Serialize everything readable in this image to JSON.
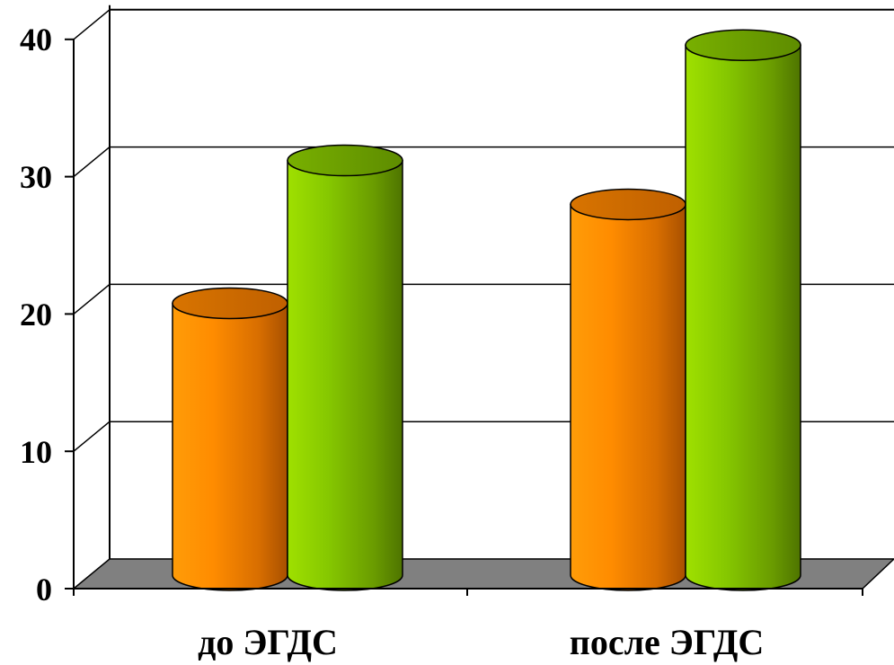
{
  "chart_data": {
    "type": "bar",
    "style": "3d-cylinder",
    "categories": [
      "до ЭГДС",
      "после ЭГДС"
    ],
    "series": [
      {
        "values": [
          19.8,
          27
        ],
        "color": "#ff9a00"
      },
      {
        "values": [
          30.2,
          38.6
        ],
        "color": "#8ccf00"
      }
    ],
    "y_ticks": [
      "0",
      "10",
      "20",
      "30",
      "40"
    ],
    "ylim": [
      0,
      40
    ],
    "grid": true,
    "legend": "none",
    "floor_color": "#808080",
    "title": "",
    "xlabel": "",
    "ylabel": ""
  }
}
